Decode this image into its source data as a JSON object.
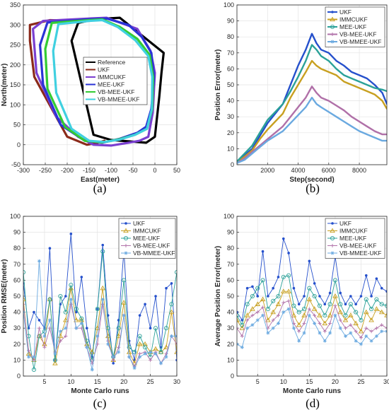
{
  "colors": {
    "Reference": "#000000",
    "UKF": "#2550cc",
    "IMMCUKF": "#c8a020",
    "MEE-UKF": "#2aa198",
    "VB-MEE-UKF": "#b070a8",
    "VB-MMEE-UKF": "#6aa9e0",
    "traj_Reference": "#000000",
    "traj_UKF": "#8b2a1a",
    "traj_IMMCUKF": "#7a3fd0",
    "traj_MEE-UKF": "#2a33d6",
    "traj_VB-MEE-UKF": "#33cc33",
    "traj_VB-MMEE-UKF": "#40d0e0"
  },
  "chart_data": [
    {
      "panel_label": "(a)",
      "type": "line",
      "xlabel": "East(meter)",
      "ylabel": "North(meter)",
      "xlim": [
        -300,
        50
      ],
      "ylim": [
        -50,
        350
      ],
      "xticks": [
        "-300",
        "-250",
        "-200",
        "-150",
        "-100",
        "-50",
        "0",
        "50"
      ],
      "yticks": [
        "-50",
        "0",
        "50",
        "100",
        "150",
        "200",
        "250",
        "300",
        "350"
      ],
      "grid": true,
      "legend_position": "right",
      "series": [
        {
          "name": "Reference",
          "x": [
            -130,
            -80,
            20,
            15,
            10,
            0,
            -20,
            -100,
            -140,
            -190,
            -175,
            -135
          ],
          "y": [
            315,
            318,
            230,
            180,
            120,
            20,
            5,
            12,
            25,
            260,
            305,
            315
          ]
        },
        {
          "name": "UKF",
          "x": [
            -160,
            -240,
            -285,
            -285,
            -275,
            -230,
            -200,
            -155,
            -130,
            -115
          ],
          "y": [
            310,
            312,
            300,
            260,
            170,
            80,
            20,
            0,
            5,
            10
          ]
        },
        {
          "name": "IMMCUKF",
          "x": [
            -150,
            -255,
            -278,
            -270,
            -225,
            -175,
            -140,
            -100,
            -60,
            -35,
            -15,
            -5,
            0,
            -10,
            -40,
            -110,
            -150
          ],
          "y": [
            316,
            310,
            290,
            180,
            70,
            20,
            0,
            -2,
            5,
            10,
            20,
            80,
            180,
            235,
            290,
            318,
            316
          ]
        },
        {
          "name": "MEE-UKF",
          "x": [
            -150,
            -245,
            -262,
            -255,
            -215,
            -160,
            -120,
            -80,
            -40,
            -20,
            -8,
            -2,
            -8,
            -30,
            -60,
            -110,
            -150
          ],
          "y": [
            314,
            306,
            250,
            150,
            50,
            10,
            5,
            15,
            30,
            45,
            90,
            170,
            230,
            270,
            300,
            316,
            314
          ]
        },
        {
          "name": "VB-MEE-UKF",
          "x": [
            -150,
            -235,
            -250,
            -245,
            -205,
            -160,
            -120,
            -80,
            -45,
            -18,
            -6,
            -4,
            -12,
            -40,
            -80,
            -120,
            -150
          ],
          "y": [
            312,
            305,
            240,
            140,
            45,
            10,
            6,
            14,
            25,
            40,
            90,
            170,
            225,
            265,
            295,
            314,
            312
          ]
        },
        {
          "name": "VB-MMEE-UKF",
          "x": [
            -150,
            -220,
            -232,
            -225,
            -190,
            -150,
            -115,
            -80,
            -45,
            -18,
            -7,
            -6,
            -15,
            -45,
            -85,
            -120,
            -150
          ],
          "y": [
            310,
            302,
            235,
            130,
            40,
            10,
            7,
            13,
            25,
            40,
            90,
            170,
            222,
            262,
            295,
            312,
            310
          ]
        }
      ]
    },
    {
      "panel_label": "(b)",
      "type": "line",
      "xlabel": "Step(second)",
      "ylabel": "Position Error(meter)",
      "xlim": [
        0,
        9800
      ],
      "ylim": [
        0,
        100
      ],
      "xticks": [
        "2000",
        "4000",
        "6000",
        "8000"
      ],
      "yticks": [
        "0",
        "10",
        "20",
        "30",
        "40",
        "50",
        "60",
        "70",
        "80",
        "90",
        "100"
      ],
      "grid": true,
      "legend_position": "top-right",
      "series": [
        {
          "name": "UKF",
          "x": [
            0,
            500,
            1000,
            1500,
            2000,
            2500,
            3000,
            3500,
            4000,
            4500,
            4900,
            5200,
            5500,
            6000,
            6500,
            7000,
            7500,
            8000,
            8500,
            9000,
            9500,
            9800
          ],
          "y": [
            2,
            6,
            10,
            18,
            26,
            32,
            38,
            50,
            62,
            72,
            82,
            76,
            72,
            70,
            65,
            62,
            58,
            56,
            54,
            50,
            45,
            38
          ]
        },
        {
          "name": "IMMCUKF",
          "x": [
            0,
            500,
            1000,
            1500,
            2000,
            2500,
            3000,
            3500,
            4000,
            4500,
            4900,
            5200,
            5500,
            6000,
            6500,
            7000,
            7500,
            8000,
            8500,
            9000,
            9500,
            9800
          ],
          "y": [
            1,
            5,
            9,
            16,
            22,
            27,
            32,
            42,
            50,
            58,
            65,
            62,
            60,
            58,
            56,
            52,
            50,
            48,
            46,
            44,
            40,
            35
          ]
        },
        {
          "name": "MEE-UKF",
          "x": [
            0,
            500,
            1000,
            1500,
            2000,
            2500,
            3000,
            3500,
            4000,
            4500,
            4900,
            5200,
            5500,
            6000,
            6500,
            7000,
            7500,
            8000,
            8500,
            9000,
            9500,
            9800
          ],
          "y": [
            2,
            7,
            12,
            20,
            28,
            33,
            38,
            46,
            55,
            65,
            75,
            72,
            68,
            65,
            60,
            56,
            54,
            52,
            50,
            48,
            47,
            46
          ]
        },
        {
          "name": "VB-MEE-UKF",
          "x": [
            0,
            500,
            1000,
            1500,
            2000,
            2500,
            3000,
            3500,
            4000,
            4500,
            4900,
            5200,
            5500,
            6000,
            6500,
            7000,
            7500,
            8000,
            8500,
            9000,
            9500,
            9800
          ],
          "y": [
            1,
            4,
            8,
            12,
            16,
            20,
            24,
            30,
            36,
            42,
            49,
            45,
            42,
            40,
            37,
            34,
            30,
            27,
            24,
            21,
            19,
            19
          ]
        },
        {
          "name": "VB-MMEE-UKF",
          "x": [
            0,
            500,
            1000,
            1500,
            2000,
            2500,
            3000,
            3500,
            4000,
            4500,
            4900,
            5200,
            5500,
            6000,
            6500,
            7000,
            7500,
            8000,
            8500,
            9000,
            9500,
            9800
          ],
          "y": [
            1,
            3,
            7,
            11,
            15,
            18,
            21,
            26,
            31,
            36,
            42,
            38,
            36,
            33,
            30,
            27,
            24,
            21,
            19,
            17,
            15,
            15
          ]
        }
      ]
    },
    {
      "panel_label": "(c)",
      "type": "line",
      "xlabel": "Monte Carlo runs",
      "ylabel": "Position RMSE(meter)",
      "xlim": [
        1,
        30
      ],
      "ylim": [
        0,
        100
      ],
      "xticks": [
        "5",
        "10",
        "15",
        "20",
        "25",
        "30"
      ],
      "yticks": [
        "0",
        "10",
        "20",
        "30",
        "40",
        "50",
        "60",
        "70",
        "80",
        "90",
        "100"
      ],
      "grid": true,
      "legend_position": "top-right",
      "x": [
        1,
        2,
        3,
        4,
        5,
        6,
        7,
        8,
        9,
        10,
        11,
        12,
        13,
        14,
        15,
        16,
        17,
        18,
        19,
        20,
        21,
        22,
        23,
        24,
        25,
        26,
        27,
        28,
        29,
        30
      ],
      "series": [
        {
          "name": "UKF",
          "values": [
            58,
            30,
            40,
            35,
            30,
            80,
            10,
            45,
            50,
            89,
            40,
            62,
            30,
            12,
            42,
            82,
            38,
            8,
            35,
            79,
            22,
            10,
            38,
            45,
            30,
            50,
            18,
            55,
            58,
            10
          ]
        },
        {
          "name": "IMMCUKF",
          "values": [
            48,
            14,
            10,
            25,
            20,
            48,
            8,
            25,
            35,
            55,
            35,
            35,
            20,
            15,
            30,
            55,
            25,
            10,
            25,
            46,
            15,
            8,
            20,
            20,
            15,
            17,
            15,
            18,
            40,
            15
          ]
        },
        {
          "name": "MEE-UKF",
          "values": [
            65,
            25,
            4,
            25,
            28,
            48,
            10,
            50,
            40,
            57,
            42,
            36,
            22,
            10,
            42,
            78,
            30,
            12,
            30,
            60,
            18,
            15,
            25,
            18,
            12,
            30,
            15,
            30,
            45,
            65
          ]
        },
        {
          "name": "VB-MEE-UKF",
          "values": [
            45,
            16,
            10,
            30,
            18,
            30,
            15,
            22,
            25,
            45,
            30,
            30,
            18,
            8,
            20,
            45,
            22,
            10,
            18,
            38,
            12,
            6,
            14,
            15,
            10,
            15,
            8,
            14,
            25,
            20
          ]
        },
        {
          "name": "VB-MMEE-UKF",
          "values": [
            40,
            12,
            12,
            72,
            25,
            35,
            14,
            28,
            30,
            48,
            30,
            33,
            18,
            4,
            25,
            48,
            20,
            12,
            15,
            38,
            12,
            5,
            12,
            14,
            15,
            14,
            8,
            12,
            25,
            25
          ]
        }
      ]
    },
    {
      "panel_label": "(d)",
      "type": "line",
      "xlabel": "Monte Carlo runs",
      "ylabel": "Average Position Error(meter)",
      "xlim": [
        1,
        30
      ],
      "ylim": [
        0,
        100
      ],
      "xticks": [
        "5",
        "10",
        "15",
        "20",
        "25",
        "30"
      ],
      "yticks": [
        "0",
        "10",
        "20",
        "30",
        "40",
        "50",
        "60",
        "70",
        "80",
        "90",
        "100"
      ],
      "grid": true,
      "legend_position": "top-right",
      "x": [
        1,
        2,
        3,
        4,
        5,
        6,
        7,
        8,
        9,
        10,
        11,
        12,
        13,
        14,
        15,
        16,
        17,
        18,
        19,
        20,
        21,
        22,
        23,
        24,
        25,
        26,
        27,
        28,
        29,
        30
      ],
      "series": [
        {
          "name": "UKF",
          "values": [
            40,
            35,
            55,
            56,
            50,
            78,
            50,
            55,
            62,
            86,
            77,
            55,
            45,
            50,
            72,
            58,
            50,
            45,
            52,
            75,
            52,
            45,
            50,
            45,
            50,
            63,
            50,
            61,
            55,
            53
          ]
        },
        {
          "name": "IMMCUKF",
          "values": [
            35,
            30,
            38,
            42,
            45,
            48,
            35,
            40,
            45,
            53,
            53,
            38,
            32,
            38,
            48,
            42,
            38,
            33,
            38,
            50,
            40,
            35,
            38,
            33,
            28,
            40,
            35,
            42,
            40,
            38
          ]
        },
        {
          "name": "MEE-UKF",
          "values": [
            38,
            32,
            45,
            50,
            55,
            60,
            42,
            47,
            50,
            62,
            63,
            44,
            40,
            42,
            55,
            50,
            44,
            38,
            45,
            60,
            45,
            38,
            45,
            40,
            35,
            48,
            42,
            48,
            45,
            44
          ]
        },
        {
          "name": "VB-MEE-UKF",
          "values": [
            30,
            25,
            35,
            38,
            40,
            43,
            30,
            35,
            38,
            46,
            47,
            33,
            28,
            33,
            42,
            38,
            33,
            28,
            33,
            44,
            35,
            30,
            32,
            28,
            24,
            30,
            28,
            30,
            32,
            30
          ]
        },
        {
          "name": "VB-MMEE-UKF",
          "values": [
            20,
            18,
            30,
            32,
            35,
            38,
            27,
            30,
            33,
            40,
            42,
            30,
            22,
            27,
            38,
            33,
            27,
            22,
            27,
            38,
            30,
            25,
            27,
            22,
            20,
            25,
            22,
            25,
            28,
            28
          ]
        }
      ]
    }
  ]
}
